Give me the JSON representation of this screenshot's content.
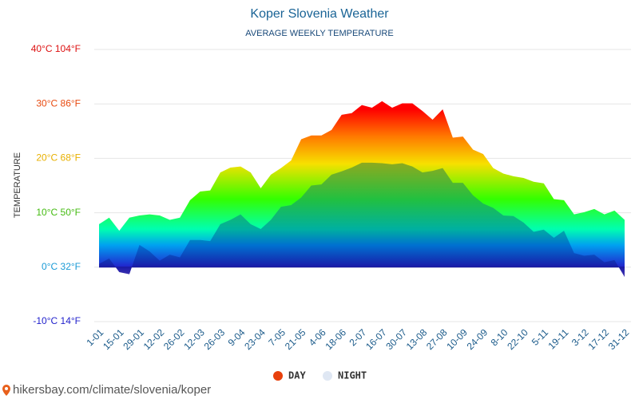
{
  "chart_data": {
    "type": "area",
    "title": "Koper Slovenia Weather",
    "subtitle": "AVERAGE WEEKLY TEMPERATURE",
    "y_label": "TEMPERATURE",
    "categories": [
      "1-01",
      null,
      "15-01",
      null,
      "29-01",
      null,
      "12-02",
      null,
      "26-02",
      null,
      "12-03",
      null,
      "26-03",
      null,
      "9-04",
      null,
      "23-04",
      null,
      "7-05",
      null,
      "21-05",
      null,
      "4-06",
      null,
      "18-06",
      null,
      "2-07",
      null,
      "16-07",
      null,
      "30-07",
      null,
      "13-08",
      null,
      "27-08",
      null,
      "10-09",
      null,
      "24-09",
      null,
      "8-10",
      null,
      "22-10",
      null,
      "5-11",
      null,
      "19-11",
      null,
      "3-12",
      null,
      "17-12",
      null,
      "31-12"
    ],
    "series": [
      {
        "name": "DAY",
        "color": "#e8400c",
        "values": [
          7.9,
          9.1,
          6.7,
          9.1,
          9.5,
          9.7,
          9.5,
          8.7,
          9.1,
          12.3,
          13.9,
          14.1,
          17.4,
          18.3,
          18.5,
          17.4,
          14.5,
          17.0,
          18.2,
          19.6,
          23.5,
          24.2,
          24.2,
          25.2,
          28.0,
          28.3,
          29.8,
          29.3,
          30.5,
          29.3,
          30.1,
          30.1,
          28.7,
          27.1,
          29.0,
          23.8,
          24.0,
          21.6,
          20.8,
          18.2,
          17.2,
          16.7,
          16.4,
          15.7,
          15.4,
          12.5,
          12.3,
          9.7,
          10.1,
          10.7,
          9.7,
          10.4,
          8.7
        ]
      },
      {
        "name": "NIGHT",
        "color": "#dfe7f3",
        "values": [
          0.6,
          1.6,
          -0.9,
          -1.3,
          4.1,
          2.9,
          1.2,
          2.3,
          1.8,
          5.0,
          5.0,
          4.8,
          7.9,
          8.7,
          9.7,
          7.9,
          7.0,
          8.7,
          11.1,
          11.4,
          12.8,
          15.0,
          15.2,
          17.0,
          17.6,
          18.3,
          19.2,
          19.2,
          19.1,
          18.9,
          19.1,
          18.5,
          17.4,
          17.7,
          18.2,
          15.5,
          15.5,
          13.2,
          11.7,
          10.9,
          9.5,
          9.4,
          8.2,
          6.5,
          6.9,
          5.4,
          6.7,
          2.6,
          2.1,
          2.3,
          0.9,
          1.3,
          -1.8
        ]
      }
    ],
    "ylim": [
      -10,
      40
    ],
    "yticks": [
      {
        "value": -10,
        "label": "-10°C 14°F"
      },
      {
        "value": 0,
        "label": "0°C 32°F"
      },
      {
        "value": 10,
        "label": "10°C 50°F"
      },
      {
        "value": 20,
        "label": "20°C 68°F"
      },
      {
        "value": 30,
        "label": "30°C 86°F"
      },
      {
        "value": 40,
        "label": "40°C 104°F"
      }
    ],
    "ytick_colors": [
      "#2222cc",
      "#1a9ad6",
      "#44bb11",
      "#e8b000",
      "#e84a10",
      "#dd1111"
    ],
    "grid": true,
    "legend": "bottom"
  },
  "footer": {
    "url": "hikersbay.com/climate/slovenia/koper"
  }
}
